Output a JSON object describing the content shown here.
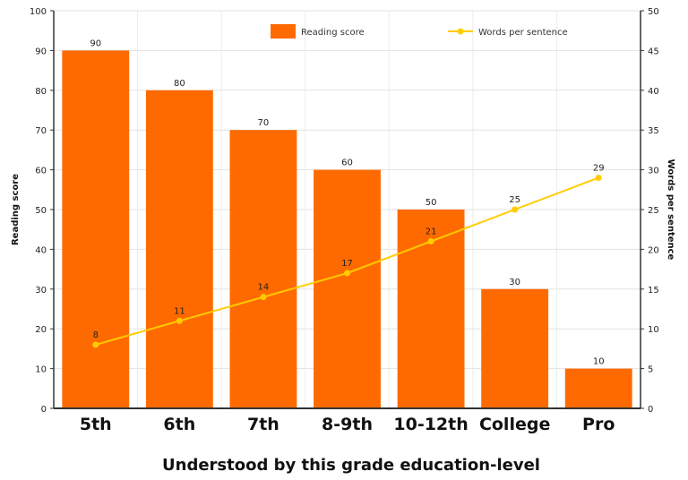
{
  "chart_data": {
    "type": "bar",
    "categories": [
      "5th",
      "6th",
      "7th",
      "8-9th",
      "10-12th",
      "College",
      "Pro"
    ],
    "series": [
      {
        "name": "Reading score",
        "type": "bar",
        "axis": "left",
        "color": "#ff6a00",
        "values": [
          90,
          80,
          70,
          60,
          50,
          30,
          10
        ]
      },
      {
        "name": "Words per sentence",
        "type": "line",
        "axis": "right",
        "color": "#ffcc00",
        "values": [
          8,
          11,
          14,
          17,
          21,
          25,
          29
        ]
      }
    ],
    "xlabel": "Understood by this grade education-level",
    "ylabel": "Reading score",
    "y2label": "Words per sentence",
    "ylim": [
      0,
      100
    ],
    "y2lim": [
      0,
      50
    ],
    "yticks": [
      0,
      10,
      20,
      30,
      40,
      50,
      60,
      70,
      80,
      90,
      100
    ],
    "y2ticks": [
      0,
      5,
      10,
      15,
      20,
      25,
      30,
      35,
      40,
      45,
      50
    ],
    "legend_position": "top",
    "grid": true
  }
}
